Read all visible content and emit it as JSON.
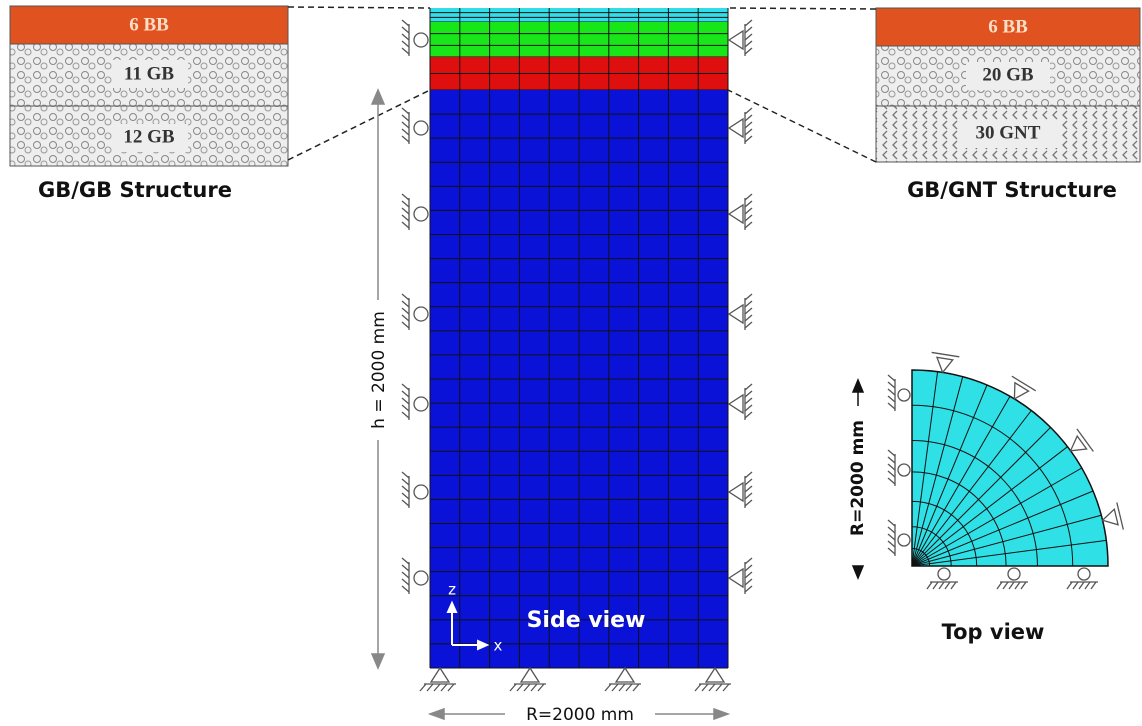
{
  "left_panel": {
    "layers": [
      "6 BB",
      "11 GB",
      "12 GB"
    ],
    "title": "GB/GB Structure"
  },
  "right_panel": {
    "layers": [
      "6 BB",
      "20 GB",
      "30 GNT"
    ],
    "title": "GB/GNT Structure"
  },
  "side_view": {
    "label": "Side view",
    "height_label": "h = 2000 mm",
    "width_label": "R=2000 mm",
    "axis_z": "z",
    "axis_x": "x"
  },
  "top_view": {
    "label": "Top view",
    "radius_label": "R=2000 mm"
  }
}
